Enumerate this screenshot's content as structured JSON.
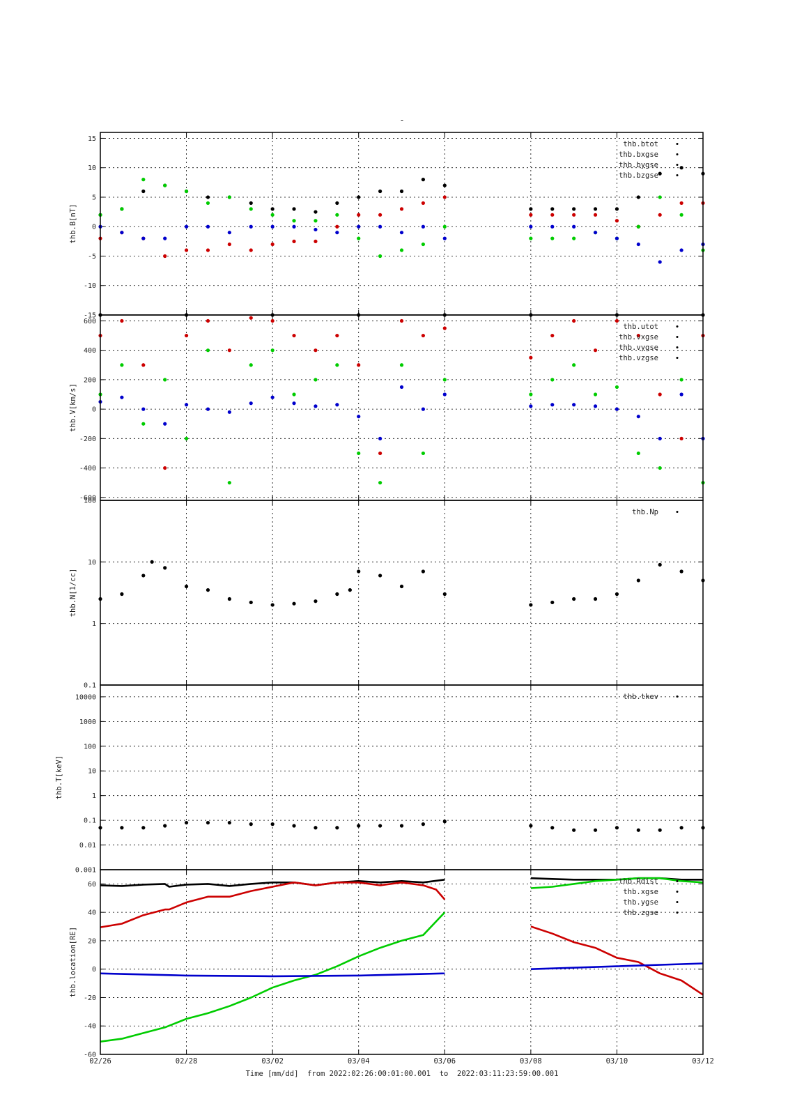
{
  "page_title": "-",
  "x_axis": {
    "label": "Time [mm/dd]  from 2022:02:26:00:01:00.001  to  2022:03:11:23:59:00.001",
    "min_day": 0,
    "max_day": 14,
    "tick_labels": [
      "02/26",
      "02/28",
      "03/02",
      "03/04",
      "03/06",
      "03/08",
      "03/10",
      "03/12"
    ],
    "tick_days": [
      0,
      2,
      4,
      6,
      8,
      10,
      12,
      14
    ],
    "data_gap": [
      "03/06",
      "03/08"
    ]
  },
  "colors": {
    "black": "#000000",
    "red": "#cc0000",
    "green": "#00cc00",
    "blue": "#0000cc"
  },
  "chart_data": [
    {
      "type": "scatter",
      "ylabel": "thb.B[nT]",
      "ylim": [
        -15,
        16
      ],
      "scale": "linear",
      "ytick_values": [
        15,
        10,
        5,
        0,
        -5,
        -10,
        -15
      ],
      "ytick_labels": [
        "15",
        "10",
        "5",
        "0",
        "-5",
        "-10",
        "-15"
      ],
      "legend": [
        "thb.btot",
        "thb.bxgse",
        "thb.bygse",
        "thb.bzgse"
      ],
      "series": [
        {
          "name": "thb.btot",
          "color": "#000000",
          "x": [
            0,
            0.5,
            1,
            1.5,
            2,
            2.5,
            3,
            3.5,
            4,
            4.5,
            5,
            5.5,
            6,
            6.5,
            7,
            7.5,
            8,
            10,
            10.5,
            11,
            11.5,
            12,
            12.5,
            13,
            13.5,
            14
          ],
          "y": [
            2,
            3,
            6,
            7,
            6,
            5,
            5,
            4,
            3,
            3,
            2.5,
            4,
            5,
            6,
            6,
            8,
            7,
            3,
            3,
            3,
            3,
            3,
            5,
            9,
            10,
            9
          ]
        },
        {
          "name": "thb.bxgse",
          "color": "#cc0000",
          "x": [
            0,
            0.5,
            1,
            1.5,
            2,
            2.5,
            3,
            3.5,
            4,
            4.5,
            5,
            5.5,
            6,
            6.5,
            7,
            7.5,
            8,
            10,
            10.5,
            11,
            11.5,
            12,
            12.5,
            13,
            13.5,
            14
          ],
          "y": [
            -2,
            -1,
            -2,
            -5,
            -4,
            -4,
            -3,
            -4,
            -3,
            -2.5,
            -2.5,
            0,
            2,
            2,
            3,
            4,
            5,
            2,
            2,
            2,
            2,
            1,
            0,
            2,
            4,
            4
          ]
        },
        {
          "name": "thb.bygse",
          "color": "#00cc00",
          "x": [
            0,
            0.5,
            1,
            1.5,
            2,
            2.5,
            3,
            3.5,
            4,
            4.5,
            5,
            5.5,
            6,
            6.5,
            7,
            7.5,
            8,
            10,
            10.5,
            11,
            11.5,
            12,
            12.5,
            13,
            13.5,
            14
          ],
          "y": [
            2,
            3,
            8,
            7,
            6,
            4,
            5,
            3,
            2,
            1,
            1,
            2,
            -2,
            -5,
            -4,
            -3,
            0,
            -2,
            -2,
            -2,
            -1,
            -2,
            0,
            5,
            2,
            -4
          ]
        },
        {
          "name": "thb.bzgse",
          "color": "#0000cc",
          "x": [
            0,
            0.5,
            1,
            1.5,
            2,
            2.5,
            3,
            3.5,
            4,
            4.5,
            5,
            5.5,
            6,
            6.5,
            7,
            7.5,
            8,
            10,
            10.5,
            11,
            11.5,
            12,
            12.5,
            13,
            13.5,
            14
          ],
          "y": [
            0,
            -1,
            -2,
            -2,
            0,
            0,
            -1,
            0,
            0,
            0,
            -0.5,
            -1,
            0,
            0,
            -1,
            0,
            -2,
            0,
            0,
            0,
            -1,
            -2,
            -3,
            -6,
            -4,
            -3
          ]
        }
      ]
    },
    {
      "type": "scatter",
      "ylabel": "thb.V[km/s]",
      "ylim": [
        -620,
        640
      ],
      "scale": "linear",
      "ytick_values": [
        600,
        400,
        200,
        0,
        -200,
        -400,
        -600
      ],
      "ytick_labels": [
        "600",
        "400",
        "200",
        "0",
        "-200",
        "-400",
        "-600"
      ],
      "legend": [
        "thb.utot",
        "thb.vxgse",
        "thb.vygse",
        "thb.vzgse"
      ],
      "series": [
        {
          "name": "thb.utot",
          "color": "#000000",
          "x": [
            0,
            2,
            4,
            6,
            8,
            10,
            12,
            14
          ],
          "y": [
            640,
            640,
            640,
            640,
            640,
            640,
            640,
            640
          ]
        },
        {
          "name": "thb.vxgse",
          "color": "#cc0000",
          "x": [
            0,
            0.5,
            1,
            1.5,
            2,
            2.5,
            3,
            3.5,
            4,
            4.5,
            5,
            5.5,
            6,
            6.5,
            7,
            7.5,
            8,
            10,
            10.5,
            11,
            11.5,
            12,
            12.5,
            13,
            13.5,
            14
          ],
          "y": [
            500,
            600,
            300,
            -400,
            500,
            600,
            400,
            620,
            600,
            500,
            400,
            500,
            300,
            -300,
            600,
            500,
            550,
            350,
            500,
            600,
            400,
            600,
            500,
            100,
            -200,
            500
          ]
        },
        {
          "name": "thb.vygse",
          "color": "#00cc00",
          "x": [
            0,
            0.5,
            1,
            1.5,
            2,
            2.5,
            3,
            3.5,
            4,
            4.5,
            5,
            5.5,
            6,
            6.5,
            7,
            7.5,
            8,
            10,
            10.5,
            11,
            11.5,
            12,
            12.5,
            13,
            13.5,
            14
          ],
          "y": [
            100,
            300,
            -100,
            200,
            -200,
            400,
            -500,
            300,
            400,
            100,
            200,
            300,
            -300,
            -500,
            300,
            -300,
            200,
            100,
            200,
            300,
            100,
            150,
            -300,
            -400,
            200,
            -500
          ]
        },
        {
          "name": "thb.vzgse",
          "color": "#0000cc",
          "x": [
            0,
            0.5,
            1,
            1.5,
            2,
            2.5,
            3,
            3.5,
            4,
            4.5,
            5,
            5.5,
            6,
            6.5,
            7,
            7.5,
            8,
            10,
            10.5,
            11,
            11.5,
            12,
            12.5,
            13,
            13.5,
            14
          ],
          "y": [
            50,
            80,
            0,
            -100,
            30,
            0,
            -20,
            40,
            80,
            40,
            20,
            30,
            -50,
            -200,
            150,
            0,
            100,
            20,
            30,
            30,
            20,
            0,
            -50,
            -200,
            100,
            -200
          ]
        }
      ]
    },
    {
      "type": "scatter",
      "ylabel": "thb.N[1/cc]",
      "ylim": [
        0.1,
        100
      ],
      "scale": "log",
      "ytick_values": [
        100,
        10,
        1,
        0.1
      ],
      "ytick_labels": [
        "100",
        "10",
        "1",
        "0.1"
      ],
      "legend": [
        "thb.Np"
      ],
      "series": [
        {
          "name": "thb.Np",
          "color": "#000000",
          "x": [
            0,
            0.5,
            1,
            1.2,
            1.5,
            2,
            2.5,
            3,
            3.5,
            4,
            4.5,
            5,
            5.5,
            5.8,
            6,
            6.5,
            7,
            7.5,
            8,
            10,
            10.5,
            11,
            11.5,
            12,
            12.5,
            13,
            13.5,
            14
          ],
          "y": [
            2.5,
            3,
            6,
            10,
            8,
            4,
            3.5,
            2.5,
            2.2,
            2,
            2.1,
            2.3,
            3,
            3.5,
            7,
            6,
            4,
            7,
            3,
            2,
            2.2,
            2.5,
            2.5,
            3,
            5,
            9,
            7,
            5
          ]
        }
      ]
    },
    {
      "type": "scatter",
      "ylabel": "thb.T[keV]",
      "ylim": [
        0.001,
        30000
      ],
      "scale": "log",
      "ytick_values": [
        10000,
        1000,
        100,
        10,
        1,
        0.1,
        0.01,
        0.001
      ],
      "ytick_labels": [
        "10000",
        "1000",
        "100",
        "10",
        "1",
        "0.1",
        "0.01",
        "0.001"
      ],
      "legend": [
        "thb.tkev"
      ],
      "series": [
        {
          "name": "thb.tkev",
          "color": "#000000",
          "x": [
            0,
            0.5,
            1,
            1.5,
            2,
            2.5,
            3,
            3.5,
            4,
            4.5,
            5,
            5.5,
            6,
            6.5,
            7,
            7.5,
            8,
            10,
            10.5,
            11,
            11.5,
            12,
            12.5,
            13,
            13.5,
            14
          ],
          "y": [
            0.05,
            0.05,
            0.05,
            0.06,
            0.08,
            0.08,
            0.08,
            0.07,
            0.07,
            0.06,
            0.05,
            0.05,
            0.06,
            0.06,
            0.06,
            0.07,
            0.09,
            0.06,
            0.05,
            0.04,
            0.04,
            0.05,
            0.04,
            0.04,
            0.05,
            0.05
          ]
        }
      ]
    },
    {
      "type": "line",
      "ylabel": "thb.location[RE]",
      "ylim": [
        -60,
        70
      ],
      "scale": "linear",
      "ytick_values": [
        60,
        40,
        20,
        0,
        -20,
        -40,
        -60
      ],
      "ytick_labels": [
        "60",
        "40",
        "20",
        "0",
        "-20",
        "-40",
        "-60"
      ],
      "legend": [
        "thb.Rdist",
        "thb.xgse",
        "thb.ygse",
        "thb.zgse"
      ],
      "series": [
        {
          "name": "thb.Rdist",
          "color": "#000000",
          "x": [
            0,
            0.5,
            1,
            1.5,
            1.6,
            2,
            2.5,
            3,
            3.5,
            4,
            4.5,
            5,
            5.5,
            6,
            6.5,
            7,
            7.5,
            8,
            10,
            10.5,
            11,
            11.5,
            12,
            12.5,
            13,
            13.5,
            14
          ],
          "y": [
            59,
            58.5,
            59.5,
            60,
            58,
            59.5,
            60,
            58.5,
            60,
            61,
            61,
            59,
            61,
            62,
            61,
            62,
            61,
            63,
            64,
            63.5,
            63,
            63,
            63,
            64,
            64,
            63,
            63
          ]
        },
        {
          "name": "thb.xgse",
          "color": "#cc0000",
          "x": [
            0,
            0.5,
            1,
            1.5,
            1.6,
            2,
            2.5,
            3,
            3.5,
            4,
            4.5,
            5,
            5.5,
            6,
            6.5,
            7,
            7.5,
            7.8,
            8,
            10,
            10.5,
            11,
            11.5,
            12,
            12.5,
            13,
            13.5,
            14
          ],
          "y": [
            29.5,
            32,
            38,
            42,
            42,
            47,
            51,
            51,
            55,
            58,
            61,
            59,
            61,
            61,
            59,
            61,
            59,
            56,
            49,
            30,
            25,
            19,
            15,
            8,
            5,
            -3,
            -8,
            -18
          ]
        },
        {
          "name": "thb.ygse",
          "color": "#00cc00",
          "x": [
            0,
            0.5,
            1,
            1.5,
            2,
            2.5,
            3,
            3.5,
            4,
            4.5,
            5,
            5.5,
            6,
            6.5,
            7,
            7.5,
            8,
            10,
            10.5,
            11,
            11.5,
            12,
            12.5,
            13,
            13.5,
            14
          ],
          "y": [
            -51,
            -49,
            -45,
            -41,
            -35,
            -31,
            -26,
            -20,
            -13,
            -8,
            -4,
            2,
            9,
            15,
            20,
            24,
            40,
            57,
            58,
            60,
            62,
            63,
            64,
            64,
            62,
            61
          ]
        },
        {
          "name": "thb.zgse",
          "color": "#0000cc",
          "x": [
            0,
            2,
            4,
            6,
            8,
            10,
            12,
            14
          ],
          "y": [
            -3,
            -4.5,
            -5,
            -4.5,
            -3,
            0,
            2,
            4
          ]
        }
      ]
    }
  ]
}
